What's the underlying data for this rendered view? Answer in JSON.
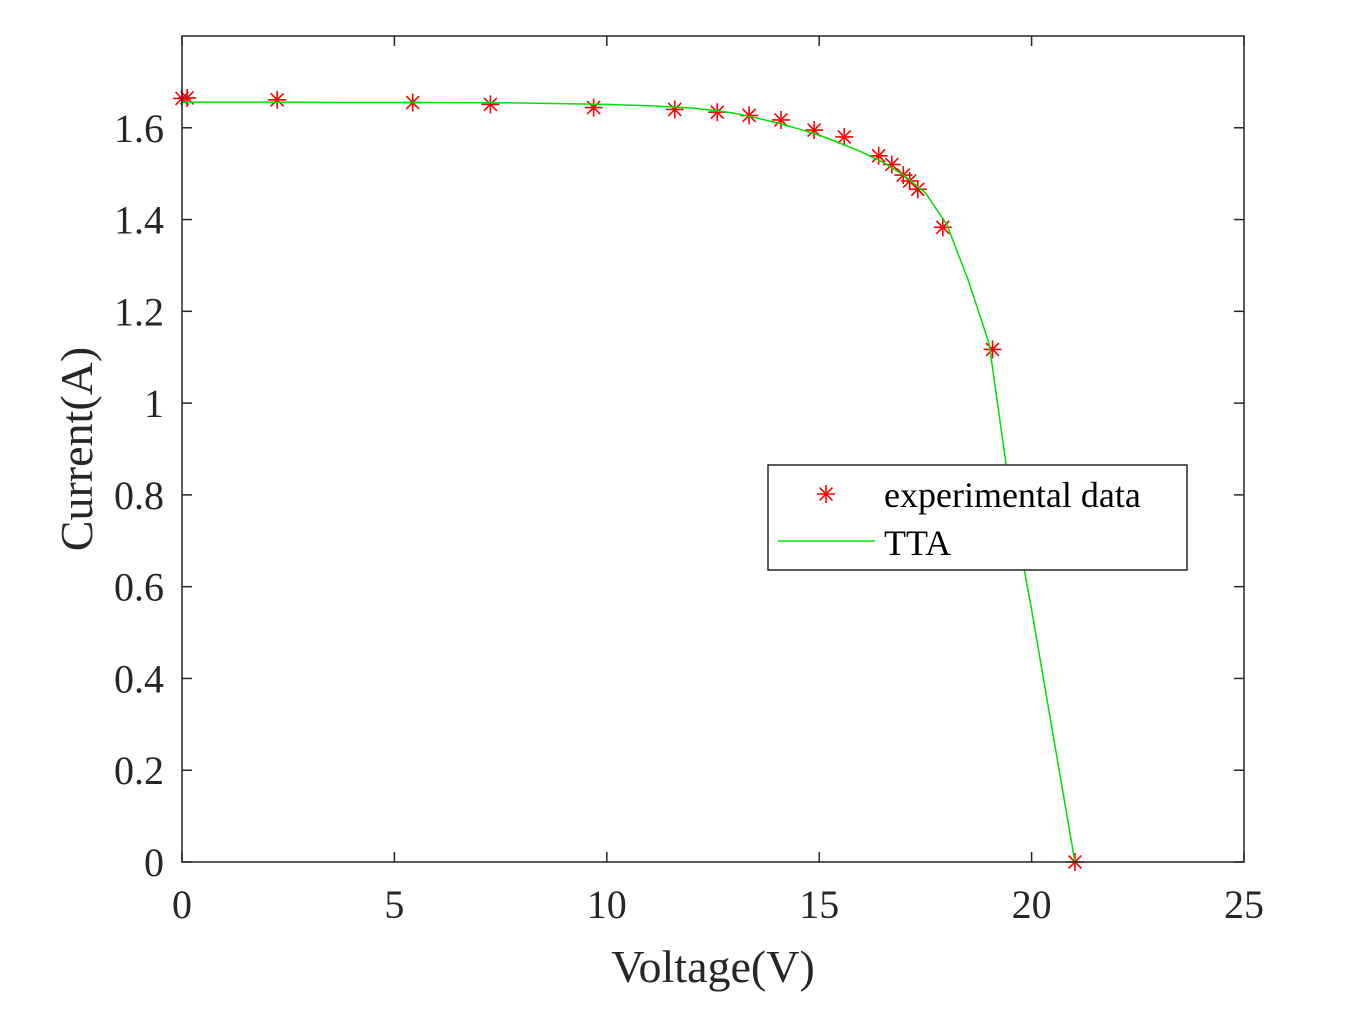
{
  "chart_data": {
    "type": "scatter",
    "title": "",
    "xlabel": "Voltage(V)",
    "ylabel": "Current(A)",
    "xlim": [
      0,
      25
    ],
    "ylim": [
      0,
      1.8
    ],
    "xticks": [
      0,
      5,
      10,
      15,
      20,
      25
    ],
    "yticks": [
      0,
      0.2,
      0.4,
      0.6,
      0.8,
      1,
      1.2,
      1.4,
      1.6
    ],
    "xtick_labels": [
      "0",
      "5",
      "10",
      "15",
      "20",
      "25"
    ],
    "ytick_labels": [
      "0",
      "0.2",
      "0.4",
      "0.6",
      "0.8",
      "1",
      "1.2",
      "1.4",
      "1.6"
    ],
    "grid": false,
    "legend_position": "right-center",
    "series": [
      {
        "name": "experimental data",
        "type": "scatter",
        "marker": "asterisk",
        "color": "#ff0000",
        "x": [
          0.0,
          0.12,
          2.24,
          5.43,
          7.26,
          9.69,
          11.6,
          12.6,
          13.35,
          14.1,
          14.88,
          15.59,
          16.4,
          16.71,
          16.98,
          17.13,
          17.32,
          17.91,
          19.08,
          21.02
        ],
        "y": [
          1.664,
          1.665,
          1.661,
          1.655,
          1.651,
          1.644,
          1.64,
          1.634,
          1.627,
          1.617,
          1.595,
          1.58,
          1.539,
          1.52,
          1.497,
          1.484,
          1.466,
          1.383,
          1.117,
          0.0
        ]
      },
      {
        "name": "TTA",
        "type": "line",
        "color": "#00e000",
        "x": [
          0.0,
          2.0,
          4.0,
          6.0,
          8.0,
          10.0,
          11.0,
          12.0,
          12.5,
          13.0,
          13.5,
          14.0,
          14.5,
          15.0,
          15.5,
          16.0,
          16.5,
          17.0,
          17.5,
          18.0,
          18.5,
          19.0,
          19.5,
          20.0,
          20.5,
          21.02
        ],
        "y": [
          1.656,
          1.656,
          1.655,
          1.655,
          1.654,
          1.651,
          1.648,
          1.643,
          1.638,
          1.632,
          1.622,
          1.611,
          1.598,
          1.584,
          1.566,
          1.547,
          1.525,
          1.496,
          1.458,
          1.39,
          1.27,
          1.13,
          0.8,
          0.55,
          0.28,
          0.0
        ]
      }
    ]
  }
}
